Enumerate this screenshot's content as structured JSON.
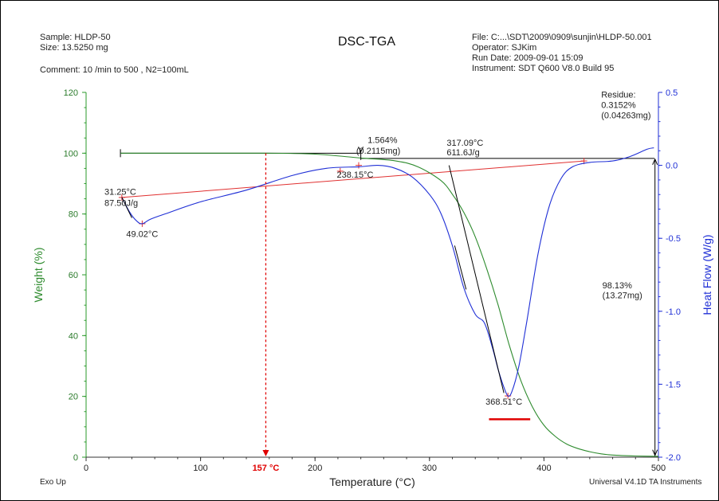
{
  "header": {
    "sample": "Sample: HLDP-50",
    "size": "Size:  13.5250 mg",
    "comment": "Comment: 10 /min to 500 , N2=100mL",
    "title": "DSC-TGA",
    "file": "File: C:...\\SDT\\2009\\0909\\sunjin\\HLDP-50.001",
    "operator": "Operator: SJKim",
    "run_date": "Run Date: 2009-09-01 15:09",
    "instrument": "Instrument: SDT Q600 V8.0 Build 95"
  },
  "footer": {
    "exo_up": "Exo Up",
    "software": "Universal V4.1D TA Instruments"
  },
  "colors": {
    "weight": "#2e8b2e",
    "heat_flow": "#1f2fd6",
    "baseline": "#e03030",
    "marker": "#e00000",
    "annotation": "#000000"
  },
  "chart_data": {
    "type": "line",
    "title": "DSC-TGA",
    "xlabel": "Temperature (°C)",
    "ylabel": "Weight (%)",
    "y2label": "Heat Flow (W/g)",
    "xlim": [
      0,
      500
    ],
    "ylim": [
      0,
      120
    ],
    "y2lim": [
      -2.0,
      0.5
    ],
    "x_ticks": [
      "0",
      "100",
      "200",
      "300",
      "400",
      "500"
    ],
    "y_ticks": [
      "0",
      "20",
      "40",
      "60",
      "80",
      "100",
      "120"
    ],
    "y2_ticks": [
      "-2.0",
      "-1.5",
      "-1.0",
      "-0.5",
      "0.0",
      "0.5"
    ],
    "grid": false,
    "series": [
      {
        "name": "Weight (%)",
        "axis": "left",
        "x": [
          30,
          100,
          157,
          200,
          240,
          270,
          290,
          310,
          320,
          330,
          340,
          350,
          360,
          370,
          380,
          390,
          400,
          410,
          420,
          430,
          440,
          450,
          460,
          480,
          500
        ],
        "y": [
          100.0,
          100.0,
          100.0,
          99.7,
          98.4,
          97.5,
          95.5,
          91.0,
          86.5,
          80.5,
          72.5,
          62.0,
          50.0,
          36.5,
          25.0,
          16.5,
          10.5,
          6.8,
          4.3,
          2.8,
          1.8,
          1.1,
          0.7,
          0.4,
          0.3
        ]
      },
      {
        "name": "Heat Flow (W/g)",
        "axis": "right",
        "x": [
          31.25,
          38,
          44,
          49.02,
          56,
          70,
          100,
          140,
          180,
          210,
          238.15,
          255,
          270,
          285,
          300,
          310,
          320,
          330,
          340,
          348,
          355,
          360,
          365,
          368.51,
          372,
          378,
          385,
          395,
          405,
          415,
          425,
          440,
          460,
          475,
          490,
          496
        ],
        "y": [
          -0.22,
          -0.32,
          -0.38,
          -0.4,
          -0.37,
          -0.33,
          -0.25,
          -0.17,
          -0.07,
          -0.02,
          -0.01,
          0.0,
          -0.02,
          -0.08,
          -0.2,
          -0.33,
          -0.55,
          -0.84,
          -1.02,
          -1.08,
          -1.25,
          -1.4,
          -1.52,
          -1.58,
          -1.55,
          -1.38,
          -1.07,
          -0.6,
          -0.27,
          -0.09,
          -0.01,
          0.02,
          0.03,
          0.06,
          0.11,
          0.12
        ]
      }
    ],
    "annotations": {
      "onset_left": [
        "31.25°C",
        "87.50J/g"
      ],
      "peak_left": "49.02°C",
      "onset_mid": "238.15°C",
      "step_loss": [
        "1.564%",
        "(0.2115mg)"
      ],
      "onset_main": [
        "317.09°C",
        "611.6J/g"
      ],
      "peak_main": "368.51°C",
      "total_loss": [
        "98.13%",
        "(13.27mg)"
      ],
      "residue": [
        "Residue:",
        "0.3152%",
        "(0.04263mg)"
      ],
      "marker_temp": "157 °C",
      "marker_x": 157
    }
  }
}
